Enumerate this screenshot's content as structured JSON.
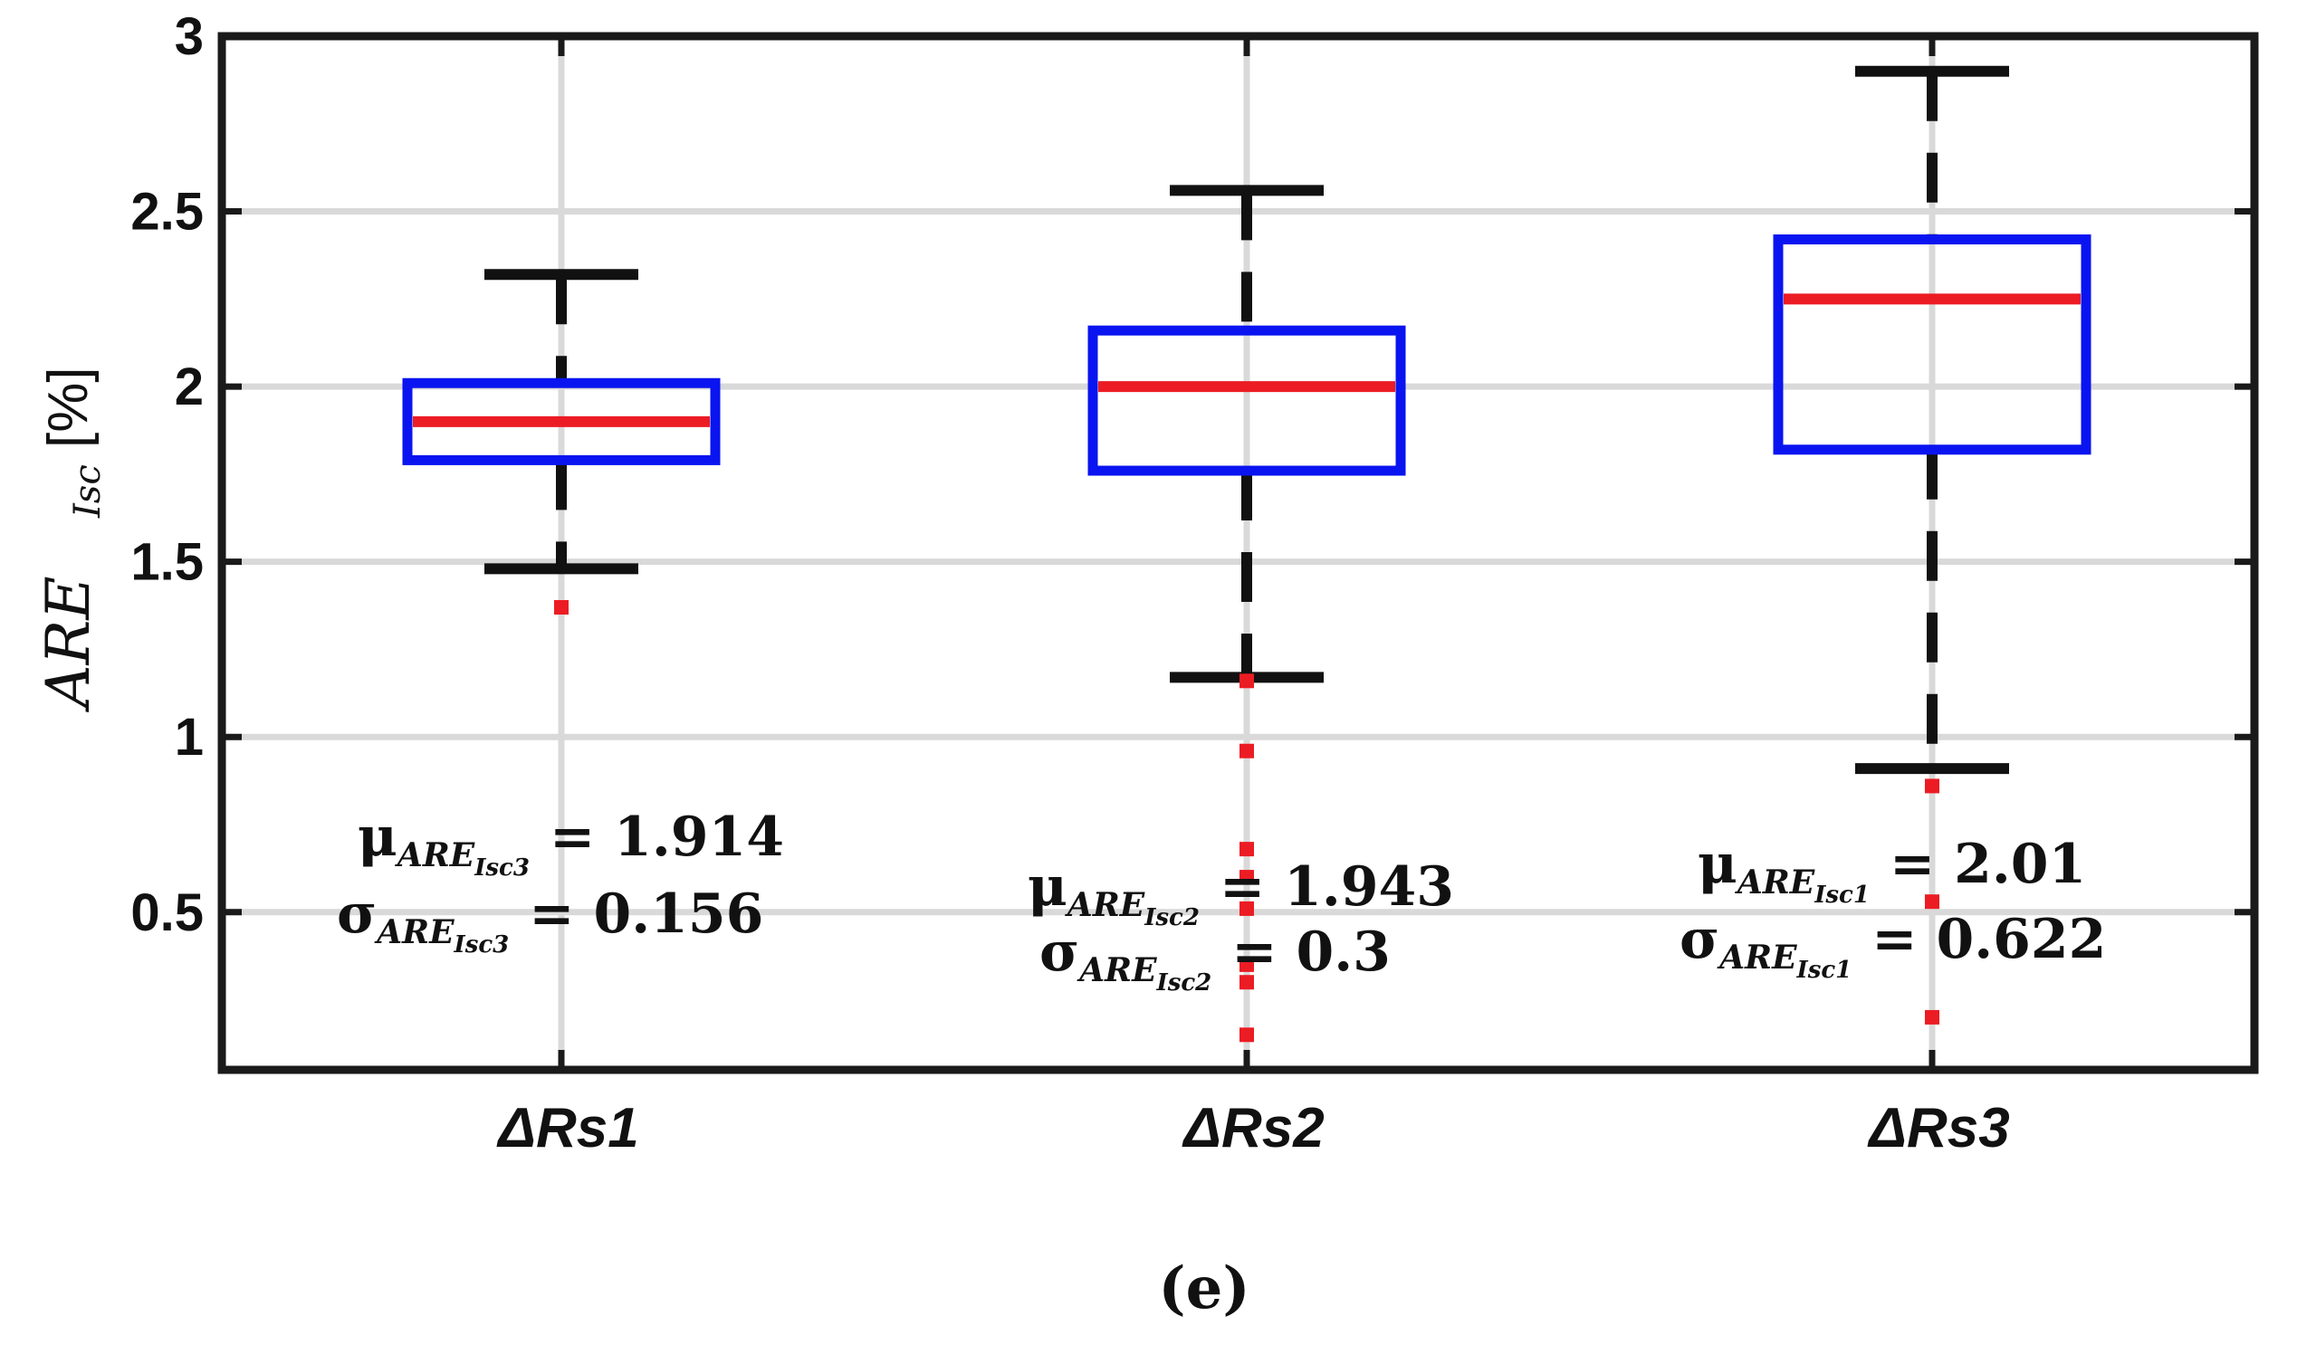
{
  "chart_data": {
    "type": "box",
    "categories": [
      "ΔRs1",
      "ΔRs2",
      "ΔRs3"
    ],
    "ylim": [
      0.05,
      3
    ],
    "yticks": [
      "0.5",
      "1",
      "1.5",
      "2",
      "2.5",
      "3"
    ],
    "ylabel": {
      "main": "ARE",
      "sub": "Isc",
      "unit": "[%]"
    },
    "grid": true,
    "boxes": [
      {
        "name": "ΔRs1",
        "whisker_low": 1.48,
        "q1": 1.79,
        "median": 1.9,
        "q3": 2.01,
        "whisker_high": 2.32,
        "outliers": [
          1.37
        ],
        "annot": {
          "mu": {
            "sym": "μ",
            "sub": "ARE",
            "subsub": "Isc3",
            "value": "= 1.914"
          },
          "sigma": {
            "sym": "σ",
            "sub": "ARE",
            "subsub": "Isc3",
            "value": "= 0.156"
          }
        }
      },
      {
        "name": "ΔRs2",
        "whisker_low": 1.17,
        "q1": 1.76,
        "median": 2.0,
        "q3": 2.16,
        "whisker_high": 2.56,
        "outliers": [
          1.16,
          0.96,
          0.68,
          0.6,
          0.51,
          0.35,
          0.3,
          0.15
        ],
        "annot": {
          "mu": {
            "sym": "μ",
            "sub": "ARE",
            "subsub": "Isc2",
            "value": "= 1.943"
          },
          "sigma": {
            "sym": "σ",
            "sub": "ARE",
            "subsub": "Isc2",
            "value": "= 0.3"
          }
        }
      },
      {
        "name": "ΔRs3",
        "whisker_low": 0.91,
        "q1": 1.82,
        "median": 2.25,
        "q3": 2.42,
        "whisker_high": 2.9,
        "outliers": [
          0.86,
          0.53,
          0.2
        ],
        "annot": {
          "mu": {
            "sym": "μ",
            "sub": "ARE",
            "subsub": "Isc1",
            "value": "= 2.01"
          },
          "sigma": {
            "sym": "σ",
            "sub": "ARE",
            "subsub": "Isc1",
            "value": "= 0.622"
          }
        }
      }
    ],
    "colors": {
      "box": "#0a14f0",
      "median": "#ec1c24",
      "whisker": "#111111",
      "outlier": "#ec1c24",
      "grid": "#d9d9d9"
    }
  },
  "panel_label": "(e)"
}
